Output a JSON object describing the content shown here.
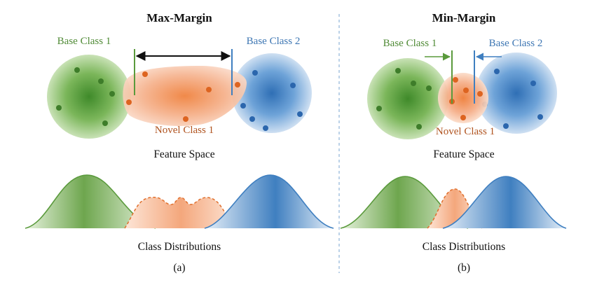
{
  "panels": [
    {
      "title": "Max-Margin",
      "base_class_1": "Base Class 1",
      "base_class_2": "Base Class 2",
      "novel_class": "Novel Class 1",
      "feature_space": "Feature Space",
      "distributions": "Class Distributions",
      "caption": "(a)"
    },
    {
      "title": "Min-Margin",
      "base_class_1": "Base Class 1",
      "base_class_2": "Base Class 2",
      "novel_class": "Novel Class 1",
      "feature_space": "Feature Space",
      "distributions": "Class Distributions",
      "caption": "(b)"
    }
  ],
  "colors": {
    "base1": "#5a9a3c",
    "base1_text": "#4f8a35",
    "base2": "#3f7fc0",
    "base2_text": "#3d76b3",
    "novel": "#e0702e",
    "novel_text": "#b0531f",
    "divider": "#8fb3d8"
  }
}
